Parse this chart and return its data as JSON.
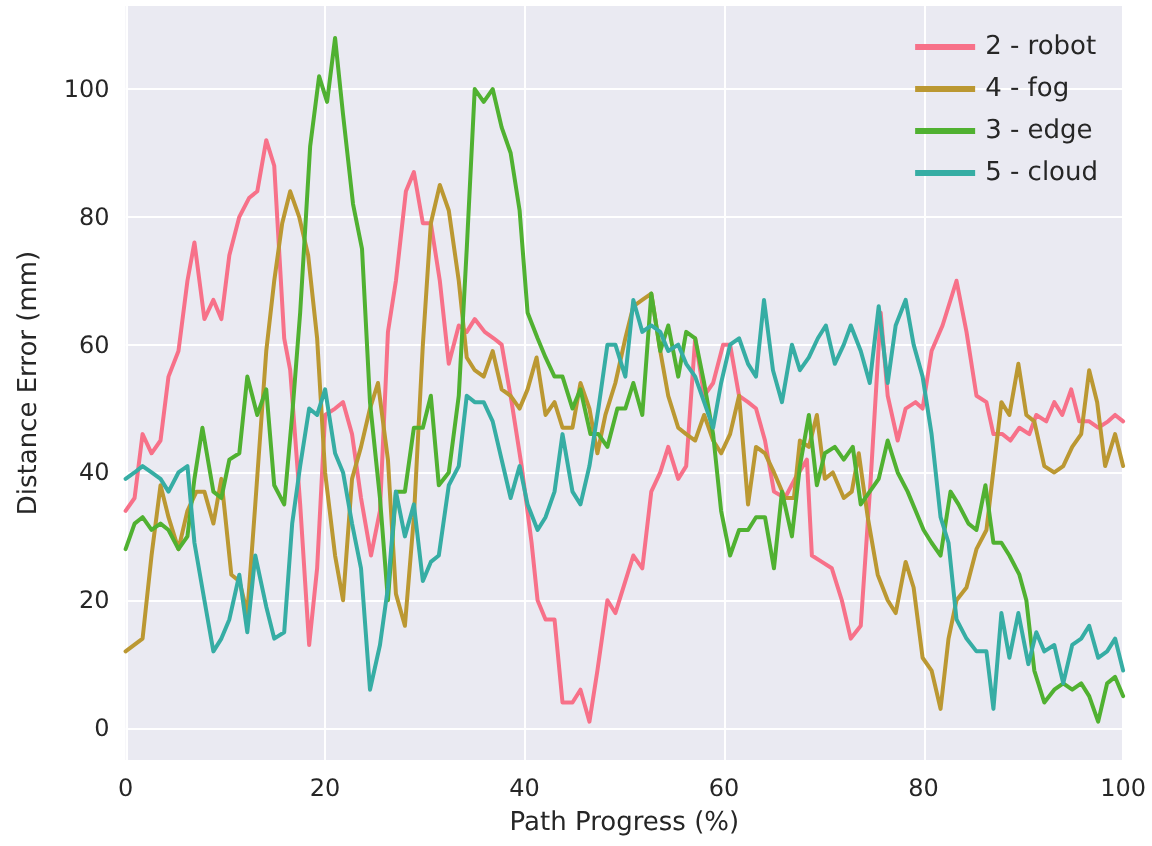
{
  "chart_data": {
    "type": "line",
    "xlabel": "Path Progress (%)",
    "ylabel": "Distance Error (mm)",
    "xlim": [
      0,
      100
    ],
    "xticks": [
      0,
      20,
      40,
      60,
      80,
      100
    ],
    "ylim": [
      -5,
      113
    ],
    "yticks": [
      0,
      20,
      40,
      60,
      80,
      100
    ],
    "grid": true,
    "legend": "top right",
    "marker": "none",
    "line_style": "solid",
    "series": [
      {
        "name": "2 - robot",
        "color": "#f77189",
        "x": [
          0,
          0.9,
          1.7,
          2.6,
          3.5,
          4.3,
          5.3,
          6.2,
          6.9,
          7.9,
          8.8,
          9.6,
          10.4,
          11.4,
          12.4,
          13.2,
          14.1,
          14.9,
          15.9,
          16.5,
          17.5,
          18.4,
          19.2,
          20.0,
          21.0,
          21.8,
          22.7,
          23.6,
          24.6,
          25.5,
          26.3,
          27.1,
          28.1,
          28.9,
          29.8,
          30.6,
          31.5,
          32.4,
          33.4,
          34.2,
          35.0,
          36.0,
          36.9,
          37.7,
          38.7,
          39.7,
          40.7,
          41.3,
          42.1,
          43.0,
          43.8,
          44.8,
          45.6,
          46.5,
          47.3,
          48.3,
          49.1,
          50.1,
          50.9,
          51.8,
          52.7,
          53.6,
          54.4,
          55.4,
          56.2,
          57.1,
          58.0,
          58.9,
          59.9,
          60.6,
          61.5,
          62.4,
          63.2,
          64.1,
          65.0,
          66.1,
          67.1,
          68.3,
          68.8,
          69.8,
          70.8,
          71.8,
          72.7,
          73.7,
          74.7,
          75.7,
          76.4,
          77.4,
          78.2,
          79.2,
          79.9,
          80.8,
          81.9,
          83.3,
          84.3,
          85.3,
          86.3,
          87.0,
          87.9,
          88.7,
          89.6,
          90.6,
          91.3,
          92.3,
          93.1,
          93.9,
          94.8,
          95.6,
          96.6,
          97.5,
          98.5,
          99.2,
          100
        ],
        "values": [
          34,
          36,
          46,
          43,
          45,
          55,
          59,
          70,
          76,
          64,
          67,
          64,
          74,
          80,
          83,
          84,
          92,
          88,
          61,
          56,
          35,
          13,
          25,
          49,
          50,
          51,
          46,
          36,
          27,
          34,
          62,
          70,
          84,
          87,
          79,
          79,
          70,
          57,
          63,
          62,
          64,
          62,
          61,
          60,
          51,
          41,
          29,
          20,
          17,
          17,
          4,
          4,
          6,
          1,
          9,
          20,
          18,
          23,
          27,
          25,
          37,
          40,
          44,
          39,
          41,
          61,
          52,
          54,
          60,
          60,
          52,
          51,
          50,
          45,
          37,
          36,
          39,
          42,
          27,
          26,
          25,
          20,
          14,
          16,
          39,
          65,
          52,
          45,
          50,
          51,
          50,
          59,
          63,
          70,
          62,
          52,
          51,
          46,
          46,
          45,
          47,
          46,
          49,
          48,
          51,
          49,
          53,
          48,
          48,
          47,
          48,
          49,
          48
        ]
      },
      {
        "name": "4 - fog",
        "color": "#bb9832",
        "x": [
          0,
          1.7,
          2.6,
          3.5,
          4.3,
          5.3,
          6.2,
          7.1,
          7.9,
          8.8,
          9.6,
          10.6,
          11.4,
          12.2,
          13.0,
          14.1,
          14.9,
          15.7,
          16.5,
          17.4,
          18.3,
          19.2,
          20.0,
          21.0,
          21.8,
          22.7,
          23.6,
          24.5,
          25.3,
          26.3,
          27.1,
          28.0,
          28.9,
          29.8,
          30.6,
          31.5,
          32.4,
          33.4,
          34.2,
          35.0,
          35.9,
          36.8,
          37.7,
          38.6,
          39.5,
          40.3,
          41.2,
          42.1,
          43.0,
          43.8,
          44.8,
          45.6,
          46.5,
          47.3,
          48.1,
          49.1,
          50.1,
          50.9,
          51.8,
          52.7,
          53.6,
          54.4,
          55.4,
          56.2,
          57.1,
          58.0,
          58.9,
          59.7,
          60.6,
          61.5,
          62.4,
          63.2,
          64.1,
          65.0,
          66.1,
          67.0,
          67.6,
          68.5,
          69.3,
          70.1,
          70.9,
          72.0,
          72.8,
          73.5,
          74.4,
          75.4,
          76.4,
          77.2,
          78.2,
          79.0,
          79.9,
          80.8,
          81.7,
          82.5,
          83.3,
          84.3,
          85.3,
          86.3,
          87.2,
          87.8,
          88.6,
          89.5,
          90.3,
          91.1,
          92.1,
          93.1,
          94.0,
          94.9,
          95.8,
          96.6,
          97.4,
          98.2,
          99.2,
          100
        ],
        "values": [
          12,
          14,
          27,
          38,
          33,
          28,
          34,
          37,
          37,
          32,
          39,
          24,
          23,
          18,
          35,
          59,
          70,
          79,
          84,
          80,
          74,
          61,
          40,
          27,
          20,
          39,
          44,
          50,
          54,
          42,
          21,
          16,
          33,
          60,
          79,
          85,
          81,
          70,
          58,
          56,
          55,
          59,
          53,
          52,
          50,
          53,
          58,
          49,
          51,
          47,
          47,
          54,
          50,
          43,
          49,
          54,
          61,
          66,
          67,
          68,
          59,
          52,
          47,
          46,
          45,
          49,
          45,
          43,
          46,
          52,
          35,
          44,
          43,
          40,
          36,
          36,
          45,
          44,
          49,
          39,
          40,
          36,
          37,
          43,
          33,
          24,
          20,
          18,
          26,
          22,
          11,
          9,
          3,
          14,
          20,
          22,
          28,
          31,
          43,
          51,
          49,
          57,
          49,
          48,
          41,
          40,
          41,
          44,
          46,
          56,
          51,
          41,
          46,
          41
        ]
      },
      {
        "name": "3 - edge",
        "color": "#50b131",
        "x": [
          0,
          0.9,
          1.7,
          2.6,
          3.5,
          4.3,
          5.3,
          6.2,
          6.9,
          7.7,
          8.8,
          9.6,
          10.4,
          11.4,
          12.2,
          13.2,
          14.1,
          14.9,
          15.9,
          16.7,
          17.5,
          18.5,
          19.4,
          20.2,
          21.0,
          21.8,
          22.8,
          23.7,
          24.5,
          25.5,
          26.3,
          27.1,
          28.0,
          28.9,
          29.8,
          30.6,
          31.4,
          32.4,
          33.4,
          34.2,
          35.0,
          35.9,
          36.8,
          37.7,
          38.6,
          39.5,
          40.3,
          41.3,
          42.1,
          43.0,
          43.8,
          44.8,
          45.6,
          46.6,
          47.4,
          48.3,
          49.3,
          50.1,
          50.9,
          51.8,
          52.7,
          53.6,
          54.4,
          55.4,
          56.2,
          57.1,
          58.0,
          58.9,
          59.7,
          60.6,
          61.5,
          62.4,
          63.2,
          64.1,
          65.0,
          65.8,
          66.8,
          67.6,
          68.5,
          69.3,
          70.1,
          71.1,
          72.0,
          72.9,
          73.7,
          74.6,
          75.5,
          76.4,
          77.4,
          78.4,
          79.2,
          80.0,
          80.8,
          81.7,
          82.7,
          83.5,
          84.5,
          85.3,
          86.2,
          87.0,
          87.8,
          88.6,
          89.6,
          90.3,
          91.1,
          92.1,
          93.1,
          94.0,
          94.9,
          95.8,
          96.6,
          97.5,
          98.4,
          99.2,
          100
        ],
        "values": [
          28,
          32,
          33,
          31,
          32,
          31,
          28,
          30,
          39,
          47,
          37,
          36,
          42,
          43,
          55,
          49,
          53,
          38,
          35,
          49,
          65,
          91,
          102,
          98,
          108,
          96,
          82,
          75,
          51,
          36,
          20,
          37,
          37,
          47,
          47,
          52,
          38,
          40,
          52,
          75,
          100,
          98,
          100,
          94,
          90,
          81,
          65,
          61,
          58,
          55,
          55,
          50,
          53,
          46,
          46,
          44,
          50,
          50,
          54,
          49,
          68,
          59,
          63,
          55,
          62,
          61,
          54,
          46,
          34,
          27,
          31,
          31,
          33,
          33,
          25,
          37,
          30,
          41,
          49,
          38,
          43,
          44,
          42,
          44,
          35,
          37,
          39,
          45,
          40,
          37,
          34,
          31,
          29,
          27,
          37,
          35,
          32,
          31,
          38,
          29,
          29,
          27,
          24,
          20,
          9,
          4,
          6,
          7,
          6,
          7,
          5,
          1,
          7,
          8,
          5
        ]
      },
      {
        "name": "5 - cloud",
        "color": "#36ada4",
        "x": [
          0,
          0.9,
          1.7,
          2.6,
          3.5,
          4.3,
          5.3,
          6.2,
          6.9,
          7.9,
          8.8,
          9.6,
          10.4,
          11.4,
          12.2,
          13.0,
          14.1,
          14.9,
          15.9,
          16.7,
          17.5,
          18.4,
          19.2,
          20.0,
          21.0,
          21.8,
          22.7,
          23.6,
          24.5,
          25.5,
          26.3,
          27.1,
          28.0,
          28.9,
          29.8,
          30.6,
          31.4,
          32.4,
          33.4,
          34.2,
          35.0,
          35.9,
          36.8,
          37.7,
          38.6,
          39.5,
          40.3,
          41.3,
          42.1,
          43.0,
          43.8,
          44.8,
          45.6,
          46.5,
          47.4,
          48.3,
          49.1,
          50.1,
          50.9,
          51.8,
          52.7,
          53.6,
          54.4,
          55.4,
          56.2,
          57.1,
          58.0,
          58.9,
          59.7,
          60.6,
          61.5,
          62.4,
          63.2,
          64.0,
          64.9,
          65.8,
          66.8,
          67.6,
          68.5,
          69.4,
          70.2,
          71.1,
          72.0,
          72.7,
          73.7,
          74.6,
          75.5,
          76.4,
          77.2,
          78.2,
          79.0,
          79.9,
          80.8,
          81.7,
          82.5,
          83.3,
          84.3,
          85.3,
          86.3,
          87.0,
          87.8,
          88.6,
          89.5,
          90.5,
          91.3,
          92.1,
          93.1,
          94.0,
          94.9,
          95.8,
          96.6,
          97.5,
          98.4,
          99.2,
          100
        ],
        "values": [
          39,
          40,
          41,
          40,
          39,
          37,
          40,
          41,
          29,
          20,
          12,
          14,
          17,
          24,
          15,
          27,
          19,
          14,
          15,
          32,
          41,
          50,
          49,
          53,
          43,
          40,
          32,
          25,
          6,
          13,
          22,
          37,
          30,
          35,
          23,
          26,
          27,
          38,
          41,
          52,
          51,
          51,
          48,
          42,
          36,
          41,
          35,
          31,
          33,
          37,
          46,
          37,
          35,
          41,
          50,
          60,
          60,
          55,
          67,
          62,
          63,
          62,
          59,
          60,
          57,
          55,
          51,
          47,
          54,
          60,
          61,
          57,
          55,
          67,
          56,
          51,
          60,
          56,
          58,
          61,
          63,
          57,
          60,
          63,
          59,
          54,
          66,
          54,
          63,
          67,
          60,
          55,
          46,
          33,
          29,
          17,
          14,
          12,
          12,
          3,
          18,
          11,
          18,
          10,
          15,
          12,
          13,
          7,
          13,
          14,
          16,
          11,
          12,
          14,
          9
        ]
      }
    ]
  }
}
